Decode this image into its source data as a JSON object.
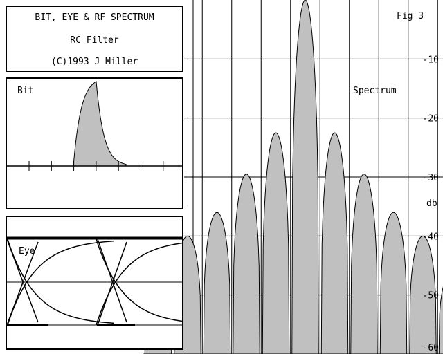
{
  "info": {
    "title": "BIT, EYE & RF SPECTRUM",
    "subtitle": "RC Filter",
    "copyright": "(C)1993 J Miller"
  },
  "fig_label": "Fig 3",
  "spectrum_label": "Spectrum",
  "bit_label": "Bit",
  "eye_label": "Eye",
  "colors": {
    "fill": "#c0c0c0",
    "line": "#000000",
    "background": "#ffffff"
  },
  "chart_data": [
    {
      "type": "area",
      "name": "spectrum",
      "ylabel": "db",
      "ylim": [
        -60,
        0
      ],
      "yticks": [
        "-10",
        "-20",
        "-30",
        "-40",
        "-50",
        "-60"
      ],
      "grid": true,
      "lobes": [
        {
          "lobe": -5,
          "peak_db": -46
        },
        {
          "lobe": -4,
          "peak_db": -40
        },
        {
          "lobe": -3,
          "peak_db": -36
        },
        {
          "lobe": -2,
          "peak_db": -29.5
        },
        {
          "lobe": -1,
          "peak_db": -22.5
        },
        {
          "lobe": 0,
          "peak_db": 0
        },
        {
          "lobe": 1,
          "peak_db": -22.5
        },
        {
          "lobe": 2,
          "peak_db": -29.5
        },
        {
          "lobe": 3,
          "peak_db": -36
        },
        {
          "lobe": 4,
          "peak_db": -40
        },
        {
          "lobe": 5,
          "peak_db": -46
        }
      ]
    },
    {
      "type": "area",
      "name": "bit",
      "description_shape": "RC filtered pulse: rise over 1 bit period then exponential decay",
      "x_ticks_count": 7
    },
    {
      "type": "line",
      "name": "eye",
      "shape": "two-level eye diagram with crossings"
    }
  ]
}
